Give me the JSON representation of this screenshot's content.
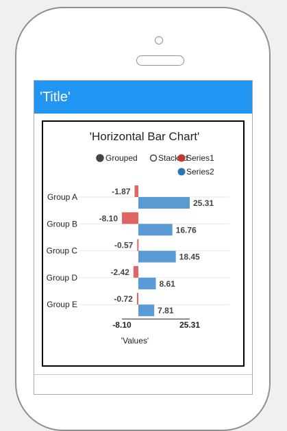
{
  "app": {
    "title": "'Title'"
  },
  "controls": {
    "grouped_label": "Grouped",
    "stacked_label": "Stacked"
  },
  "colors": {
    "series1": "#e06666",
    "series2": "#5a9bd5",
    "appbar": "#2196f3"
  },
  "chart_data": {
    "type": "bar",
    "orientation": "horizontal",
    "title": "'Horizontal Bar Chart'",
    "xlabel": "'Values'",
    "categories": [
      "Group A",
      "Group B",
      "Group C",
      "Group D",
      "Group E"
    ],
    "series": [
      {
        "name": "Series1",
        "values": [
          -1.87,
          -8.1,
          -0.57,
          -2.42,
          -0.72
        ]
      },
      {
        "name": "Series2",
        "values": [
          25.31,
          16.76,
          18.45,
          8.61,
          7.81
        ]
      }
    ],
    "xlim": [
      -8.1,
      25.31
    ],
    "x_ticks": [
      "-8.10",
      "25.31"
    ],
    "mode": "grouped",
    "legend_position": "top-right"
  }
}
